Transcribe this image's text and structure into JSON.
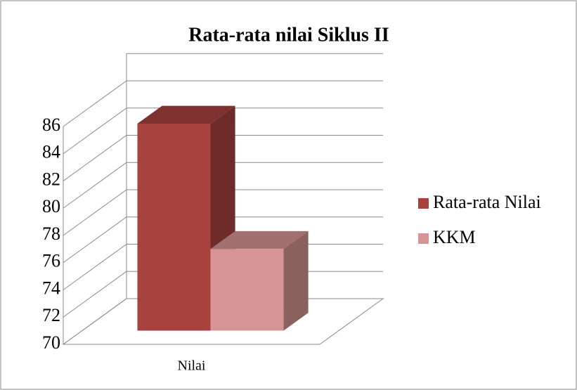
{
  "chart_data": {
    "type": "bar",
    "title": "Rata-rata nilai Siklus II",
    "categories": [
      "Nilai"
    ],
    "series": [
      {
        "name": "Rata-rata Nilai",
        "color": "#a8423f",
        "values": [
          85.2
        ]
      },
      {
        "name": "KKM",
        "color": "#d69594",
        "values": [
          76
        ]
      }
    ],
    "ylim": [
      70,
      86
    ],
    "yticks": [
      70,
      72,
      74,
      76,
      78,
      80,
      82,
      84,
      86
    ],
    "grid": true,
    "legend": "right"
  }
}
